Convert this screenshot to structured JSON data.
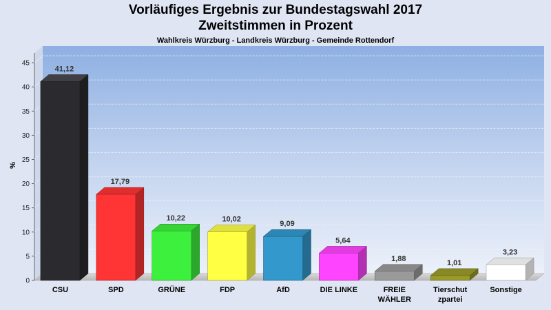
{
  "header": {
    "title_line1": "Vorläufiges Ergebnis zur Bundestagswahl 2017",
    "title_line2": "Zweitstimmen in Prozent",
    "subtitle": "Wahlkreis Würzburg - Landkreis Würzburg - Gemeinde Rottendorf"
  },
  "chart_data": {
    "type": "bar",
    "title": "Vorläufiges Ergebnis zur Bundestagswahl 2017 Zweitstimmen in Prozent",
    "subtitle": "Wahlkreis Würzburg - Landkreis Würzburg - Gemeinde Rottendorf",
    "ylabel": "%",
    "xlabel": "",
    "ylim": [
      0,
      47
    ],
    "yticks": [
      0,
      5,
      10,
      15,
      20,
      25,
      30,
      35,
      40,
      45
    ],
    "grid": true,
    "categories": [
      [
        "CSU"
      ],
      [
        "SPD"
      ],
      [
        "GRÜNE"
      ],
      [
        "FDP"
      ],
      [
        "AfD"
      ],
      [
        "DIE LINKE"
      ],
      [
        "FREIE",
        "WÄHLER"
      ],
      [
        "Tierschut",
        "zpartei"
      ],
      [
        "Sonstige"
      ]
    ],
    "values": [
      41.12,
      17.79,
      10.22,
      10.02,
      9.09,
      5.64,
      1.88,
      1.01,
      3.23
    ],
    "value_labels": [
      "41,12",
      "17,79",
      "10,22",
      "10,02",
      "9,09",
      "5,64",
      "1,88",
      "1,01",
      "3,23"
    ],
    "colors": [
      "#2b2b2f",
      "#ff3434",
      "#3ef03e",
      "#ffff44",
      "#3399cc",
      "#ff44ff",
      "#9a9a9a",
      "#9a9a2a",
      "#ffffff"
    ]
  }
}
